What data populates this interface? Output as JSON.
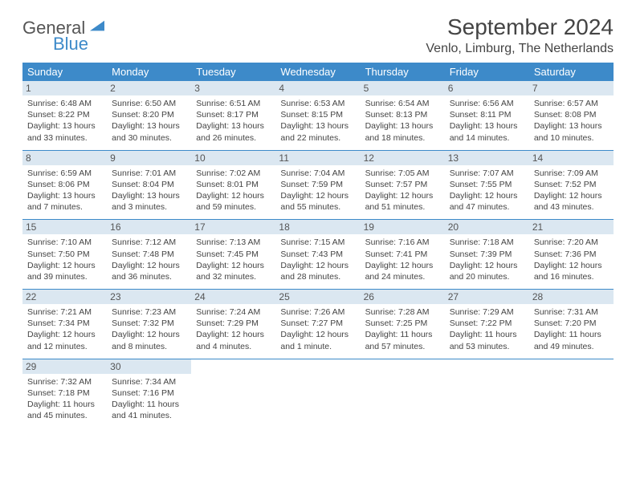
{
  "logo": {
    "word1": "General",
    "word2": "Blue"
  },
  "title": "September 2024",
  "location": "Venlo, Limburg, The Netherlands",
  "colors": {
    "header_bg": "#3d8ac9",
    "daybar_bg": "#dbe7f1",
    "rule": "#3d8ac9",
    "text": "#444"
  },
  "weekdays": [
    "Sunday",
    "Monday",
    "Tuesday",
    "Wednesday",
    "Thursday",
    "Friday",
    "Saturday"
  ],
  "weeks": [
    [
      {
        "n": "1",
        "sr": "Sunrise: 6:48 AM",
        "ss": "Sunset: 8:22 PM",
        "dl": "Daylight: 13 hours and 33 minutes."
      },
      {
        "n": "2",
        "sr": "Sunrise: 6:50 AM",
        "ss": "Sunset: 8:20 PM",
        "dl": "Daylight: 13 hours and 30 minutes."
      },
      {
        "n": "3",
        "sr": "Sunrise: 6:51 AM",
        "ss": "Sunset: 8:17 PM",
        "dl": "Daylight: 13 hours and 26 minutes."
      },
      {
        "n": "4",
        "sr": "Sunrise: 6:53 AM",
        "ss": "Sunset: 8:15 PM",
        "dl": "Daylight: 13 hours and 22 minutes."
      },
      {
        "n": "5",
        "sr": "Sunrise: 6:54 AM",
        "ss": "Sunset: 8:13 PM",
        "dl": "Daylight: 13 hours and 18 minutes."
      },
      {
        "n": "6",
        "sr": "Sunrise: 6:56 AM",
        "ss": "Sunset: 8:11 PM",
        "dl": "Daylight: 13 hours and 14 minutes."
      },
      {
        "n": "7",
        "sr": "Sunrise: 6:57 AM",
        "ss": "Sunset: 8:08 PM",
        "dl": "Daylight: 13 hours and 10 minutes."
      }
    ],
    [
      {
        "n": "8",
        "sr": "Sunrise: 6:59 AM",
        "ss": "Sunset: 8:06 PM",
        "dl": "Daylight: 13 hours and 7 minutes."
      },
      {
        "n": "9",
        "sr": "Sunrise: 7:01 AM",
        "ss": "Sunset: 8:04 PM",
        "dl": "Daylight: 13 hours and 3 minutes."
      },
      {
        "n": "10",
        "sr": "Sunrise: 7:02 AM",
        "ss": "Sunset: 8:01 PM",
        "dl": "Daylight: 12 hours and 59 minutes."
      },
      {
        "n": "11",
        "sr": "Sunrise: 7:04 AM",
        "ss": "Sunset: 7:59 PM",
        "dl": "Daylight: 12 hours and 55 minutes."
      },
      {
        "n": "12",
        "sr": "Sunrise: 7:05 AM",
        "ss": "Sunset: 7:57 PM",
        "dl": "Daylight: 12 hours and 51 minutes."
      },
      {
        "n": "13",
        "sr": "Sunrise: 7:07 AM",
        "ss": "Sunset: 7:55 PM",
        "dl": "Daylight: 12 hours and 47 minutes."
      },
      {
        "n": "14",
        "sr": "Sunrise: 7:09 AM",
        "ss": "Sunset: 7:52 PM",
        "dl": "Daylight: 12 hours and 43 minutes."
      }
    ],
    [
      {
        "n": "15",
        "sr": "Sunrise: 7:10 AM",
        "ss": "Sunset: 7:50 PM",
        "dl": "Daylight: 12 hours and 39 minutes."
      },
      {
        "n": "16",
        "sr": "Sunrise: 7:12 AM",
        "ss": "Sunset: 7:48 PM",
        "dl": "Daylight: 12 hours and 36 minutes."
      },
      {
        "n": "17",
        "sr": "Sunrise: 7:13 AM",
        "ss": "Sunset: 7:45 PM",
        "dl": "Daylight: 12 hours and 32 minutes."
      },
      {
        "n": "18",
        "sr": "Sunrise: 7:15 AM",
        "ss": "Sunset: 7:43 PM",
        "dl": "Daylight: 12 hours and 28 minutes."
      },
      {
        "n": "19",
        "sr": "Sunrise: 7:16 AM",
        "ss": "Sunset: 7:41 PM",
        "dl": "Daylight: 12 hours and 24 minutes."
      },
      {
        "n": "20",
        "sr": "Sunrise: 7:18 AM",
        "ss": "Sunset: 7:39 PM",
        "dl": "Daylight: 12 hours and 20 minutes."
      },
      {
        "n": "21",
        "sr": "Sunrise: 7:20 AM",
        "ss": "Sunset: 7:36 PM",
        "dl": "Daylight: 12 hours and 16 minutes."
      }
    ],
    [
      {
        "n": "22",
        "sr": "Sunrise: 7:21 AM",
        "ss": "Sunset: 7:34 PM",
        "dl": "Daylight: 12 hours and 12 minutes."
      },
      {
        "n": "23",
        "sr": "Sunrise: 7:23 AM",
        "ss": "Sunset: 7:32 PM",
        "dl": "Daylight: 12 hours and 8 minutes."
      },
      {
        "n": "24",
        "sr": "Sunrise: 7:24 AM",
        "ss": "Sunset: 7:29 PM",
        "dl": "Daylight: 12 hours and 4 minutes."
      },
      {
        "n": "25",
        "sr": "Sunrise: 7:26 AM",
        "ss": "Sunset: 7:27 PM",
        "dl": "Daylight: 12 hours and 1 minute."
      },
      {
        "n": "26",
        "sr": "Sunrise: 7:28 AM",
        "ss": "Sunset: 7:25 PM",
        "dl": "Daylight: 11 hours and 57 minutes."
      },
      {
        "n": "27",
        "sr": "Sunrise: 7:29 AM",
        "ss": "Sunset: 7:22 PM",
        "dl": "Daylight: 11 hours and 53 minutes."
      },
      {
        "n": "28",
        "sr": "Sunrise: 7:31 AM",
        "ss": "Sunset: 7:20 PM",
        "dl": "Daylight: 11 hours and 49 minutes."
      }
    ],
    [
      {
        "n": "29",
        "sr": "Sunrise: 7:32 AM",
        "ss": "Sunset: 7:18 PM",
        "dl": "Daylight: 11 hours and 45 minutes."
      },
      {
        "n": "30",
        "sr": "Sunrise: 7:34 AM",
        "ss": "Sunset: 7:16 PM",
        "dl": "Daylight: 11 hours and 41 minutes."
      },
      null,
      null,
      null,
      null,
      null
    ]
  ]
}
